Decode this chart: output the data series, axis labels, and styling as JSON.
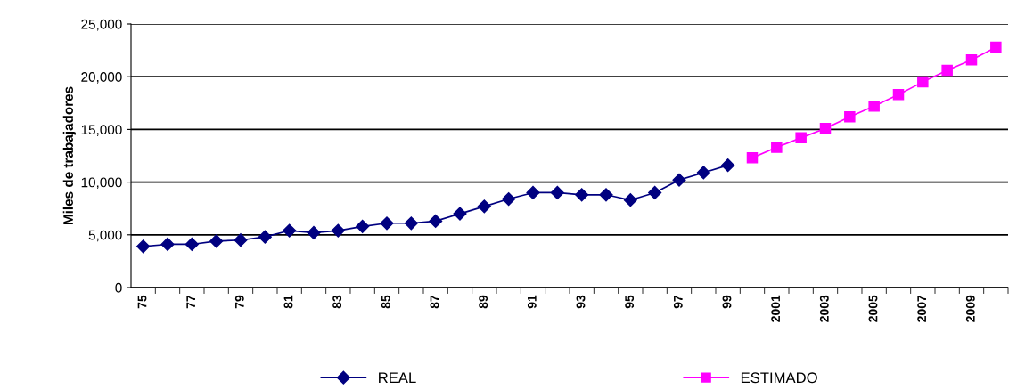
{
  "chart_data": {
    "type": "line",
    "ylabel": "Miles de trabajadores",
    "categories": [
      "75",
      null,
      "77",
      null,
      "79",
      null,
      "81",
      null,
      "83",
      null,
      "85",
      null,
      "87",
      null,
      "89",
      null,
      "91",
      null,
      "93",
      null,
      "95",
      null,
      "97",
      null,
      "99",
      null,
      "2001",
      null,
      "2003",
      null,
      "2005",
      null,
      "2007",
      null,
      "2009",
      null
    ],
    "series": [
      {
        "name": "REAL",
        "color": "#000080",
        "marker": "diamond",
        "values": [
          3900,
          4100,
          4100,
          4400,
          4500,
          4800,
          5400,
          5200,
          5400,
          5800,
          6100,
          6100,
          6300,
          7000,
          7700,
          8400,
          9000,
          9000,
          8800,
          8800,
          8300,
          9000,
          10200,
          10900,
          11600,
          null,
          null,
          null,
          null,
          null,
          null,
          null,
          null,
          null,
          null,
          null
        ]
      },
      {
        "name": "ESTIMADO",
        "color": "#ff00ff",
        "marker": "square",
        "values": [
          null,
          null,
          null,
          null,
          null,
          null,
          null,
          null,
          null,
          null,
          null,
          null,
          null,
          null,
          null,
          null,
          null,
          null,
          null,
          null,
          null,
          null,
          null,
          null,
          null,
          12300,
          13300,
          14200,
          15100,
          16200,
          17200,
          18300,
          19500,
          20600,
          21600,
          22800
        ]
      }
    ],
    "ylim": [
      0,
      25000
    ],
    "yticks": [
      {
        "value": 0,
        "label": "0"
      },
      {
        "value": 5000,
        "label": "5,000"
      },
      {
        "value": 10000,
        "label": "10,000"
      },
      {
        "value": 15000,
        "label": "15,000"
      },
      {
        "value": 20000,
        "label": "20,000"
      },
      {
        "value": 25000,
        "label": "25,000"
      }
    ],
    "grid": "y",
    "legend": "bottom"
  }
}
